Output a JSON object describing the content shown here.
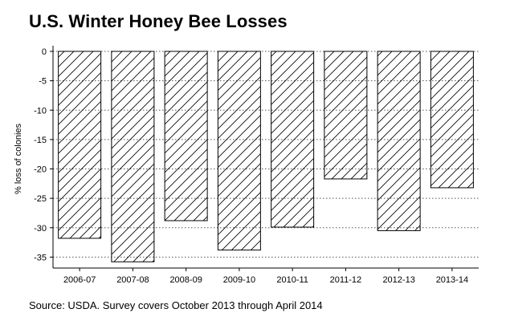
{
  "chart_data": {
    "type": "bar",
    "title": "U.S. Winter Honey Bee Losses",
    "ylabel": "% loss of colonies",
    "xlabel": "",
    "categories": [
      "2006-07",
      "2007-08",
      "2008-09",
      "2009-10",
      "2010-11",
      "2011-12",
      "2012-13",
      "2013-14"
    ],
    "values": [
      -31.8,
      -35.8,
      -28.8,
      -33.8,
      -29.9,
      -21.7,
      -30.5,
      -23.2
    ],
    "ylim": [
      -36,
      0
    ],
    "yticks": [
      0,
      -5,
      -10,
      -15,
      -20,
      -25,
      -30,
      -35
    ],
    "ytick_labels": [
      "0",
      "-5",
      "-10",
      "-15",
      "-20",
      "-25",
      "-30",
      "-35"
    ],
    "grid": "horizontal-dotted",
    "bar_fill": "diagonal-hatch",
    "colors": {
      "bar_edge": "#000000",
      "hatch": "#000000",
      "grid": "#555555",
      "background": "#ffffff"
    }
  },
  "footer": {
    "source": "Source: USDA. Survey covers October 2013 through April 2014"
  }
}
